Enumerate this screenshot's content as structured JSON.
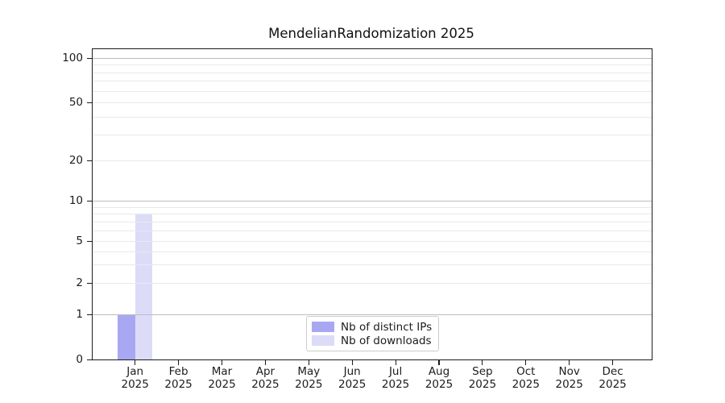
{
  "chart_data": {
    "type": "bar",
    "title": "MendelianRandomization 2025",
    "year_label": "2025",
    "categories": [
      "Jan",
      "Feb",
      "Mar",
      "Apr",
      "May",
      "Jun",
      "Jul",
      "Aug",
      "Sep",
      "Oct",
      "Nov",
      "Dec"
    ],
    "series": [
      {
        "name": "Nb of distinct IPs",
        "color": "#a8a8f2",
        "values": [
          1,
          0,
          0,
          0,
          0,
          0,
          0,
          0,
          0,
          0,
          0,
          0
        ]
      },
      {
        "name": "Nb of downloads",
        "color": "#dcdcf8",
        "values": [
          8,
          0,
          0,
          0,
          0,
          0,
          0,
          0,
          0,
          0,
          0,
          0
        ]
      }
    ],
    "ylim": [
      0,
      100
    ],
    "y_tick_labels": [
      100,
      50,
      20,
      10,
      5,
      2,
      1,
      0
    ],
    "y_major_gridlines": [
      1,
      10,
      100
    ],
    "y_minor_gridlines": [
      2,
      3,
      4,
      5,
      6,
      7,
      8,
      9,
      20,
      30,
      40,
      50,
      60,
      70,
      80,
      90
    ],
    "scale": "log1p",
    "grid": "horizontal",
    "legend_position": "lower-center",
    "axis_color": "#1c1c1c",
    "major_grid_color": "#bcbcbc",
    "minor_grid_color": "#e9e9e9"
  }
}
